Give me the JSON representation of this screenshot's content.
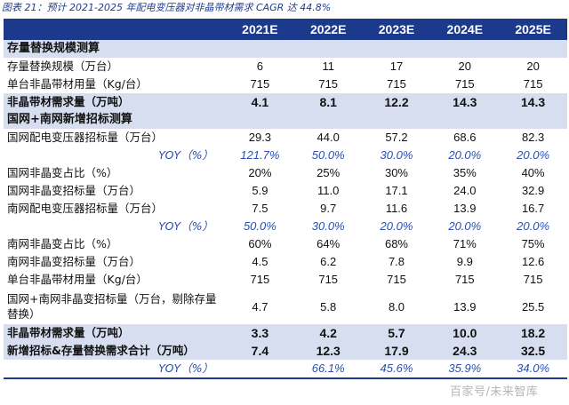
{
  "caption": "图表 21：预计 2021-2025 年配电变压器对非晶带材需求 CAGR 达 44.8%",
  "watermark": "百家号/未来智库",
  "header": {
    "label": "",
    "years": [
      "2021E",
      "2022E",
      "2023E",
      "2024E",
      "2025E"
    ]
  },
  "rows": [
    {
      "type": "section",
      "label": "存量替换规模测算",
      "values": [
        "",
        "",
        "",
        "",
        ""
      ]
    },
    {
      "type": "normal",
      "label": "存量替换规模（万台）",
      "values": [
        "6",
        "11",
        "17",
        "20",
        "20"
      ]
    },
    {
      "type": "normal",
      "label": "单台非晶带材用量（Kg/台）",
      "values": [
        "715",
        "715",
        "715",
        "715",
        "715"
      ]
    },
    {
      "type": "emph",
      "label": "非晶带材需求量（万吨）",
      "values": [
        "4.1",
        "8.1",
        "12.2",
        "14.3",
        "14.3"
      ]
    },
    {
      "type": "section",
      "label": "国网+南网新增招标测算",
      "values": [
        "",
        "",
        "",
        "",
        ""
      ]
    },
    {
      "type": "normal",
      "label": "国网配电变压器招标量（万台）",
      "values": [
        "29.3",
        "44.0",
        "57.2",
        "68.6",
        "82.3"
      ]
    },
    {
      "type": "yoy",
      "label": "YOY（%）",
      "values": [
        "121.7%",
        "50.0%",
        "30.0%",
        "20.0%",
        "20.0%"
      ]
    },
    {
      "type": "normal",
      "label": "国网非晶变占比（%）",
      "values": [
        "20%",
        "25%",
        "30%",
        "35%",
        "40%"
      ]
    },
    {
      "type": "normal",
      "label": "国网非晶变招标量（万台）",
      "values": [
        "5.9",
        "11.0",
        "17.1",
        "24.0",
        "32.9"
      ]
    },
    {
      "type": "normal",
      "label": "南网配电变压器招标量（万台）",
      "values": [
        "7.5",
        "9.7",
        "11.6",
        "13.9",
        "16.7"
      ]
    },
    {
      "type": "yoy",
      "label": "YOY（%）",
      "values": [
        "50.0%",
        "30.0%",
        "20.0%",
        "20.0%",
        "20.0%"
      ]
    },
    {
      "type": "normal",
      "label": "南网非晶变占比（%）",
      "values": [
        "60%",
        "64%",
        "68%",
        "71%",
        "75%"
      ]
    },
    {
      "type": "normal",
      "label": "南网非晶变招标量（万台）",
      "values": [
        "4.5",
        "6.2",
        "7.8",
        "9.9",
        "12.6"
      ]
    },
    {
      "type": "normal",
      "label": "单台非晶带材用量（Kg/台）",
      "values": [
        "715",
        "715",
        "715",
        "715",
        "715"
      ]
    },
    {
      "type": "tall",
      "label": "国网+南网非晶变招标量（万台，剔除存量替换）",
      "values": [
        "4.7",
        "5.8",
        "8.0",
        "13.9",
        "25.5"
      ]
    },
    {
      "type": "emph",
      "label": "非晶带材需求量（万吨）",
      "values": [
        "3.3",
        "4.2",
        "5.7",
        "10.0",
        "18.2"
      ]
    },
    {
      "type": "emph",
      "label": "新增招标&存量替换需求合计（万吨）",
      "values": [
        "7.4",
        "12.3",
        "17.9",
        "24.3",
        "32.5"
      ]
    },
    {
      "type": "yoy final",
      "label": "YOY（%）",
      "values": [
        "",
        "66.1%",
        "45.6%",
        "35.9%",
        "34.0%"
      ]
    }
  ]
}
